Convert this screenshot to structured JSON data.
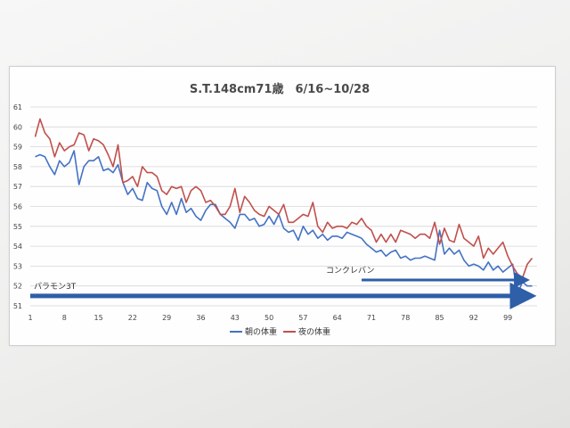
{
  "chart_data": {
    "type": "line",
    "title": "S.T.148cm71歳　6/16~10/28",
    "ylim": [
      51,
      61
    ],
    "yticks": [
      51,
      52,
      53,
      54,
      55,
      56,
      57,
      58,
      59,
      60,
      61
    ],
    "xlim": [
      1,
      105
    ],
    "xticks": [
      1,
      8,
      15,
      22,
      29,
      36,
      43,
      50,
      57,
      64,
      71,
      78,
      85,
      92,
      99
    ],
    "grid": true,
    "legend_position": "bottom",
    "series": [
      {
        "name": "朝の体重",
        "color": "#4472c4",
        "x": [
          2,
          3,
          4,
          5,
          6,
          7,
          8,
          9,
          10,
          11,
          12,
          13,
          14,
          15,
          16,
          17,
          18,
          19,
          20,
          21,
          22,
          23,
          24,
          25,
          26,
          27,
          28,
          29,
          30,
          31,
          32,
          33,
          34,
          35,
          36,
          37,
          38,
          39,
          40,
          41,
          42,
          43,
          44,
          45,
          46,
          47,
          48,
          49,
          50,
          51,
          52,
          53,
          54,
          55,
          56,
          57,
          58,
          59,
          60,
          61,
          62,
          63,
          64,
          65,
          66,
          67,
          68,
          69,
          70,
          71,
          72,
          73,
          74,
          75,
          76,
          77,
          78,
          79,
          80,
          81,
          82,
          83,
          84,
          85,
          86,
          87,
          88,
          89,
          90,
          91,
          92,
          93,
          94,
          95,
          96,
          97,
          98,
          99,
          100,
          101,
          102,
          103,
          104
        ],
        "values": [
          58.5,
          58.6,
          58.5,
          58.0,
          57.6,
          58.3,
          58.0,
          58.2,
          58.8,
          57.1,
          58.0,
          58.3,
          58.3,
          58.5,
          57.8,
          57.9,
          57.7,
          58.1,
          57.2,
          56.6,
          56.9,
          56.4,
          56.3,
          57.2,
          56.9,
          56.8,
          56.0,
          55.6,
          56.2,
          55.6,
          56.4,
          55.7,
          55.9,
          55.5,
          55.3,
          55.8,
          56.1,
          56.1,
          55.6,
          55.4,
          55.2,
          54.9,
          55.6,
          55.6,
          55.3,
          55.4,
          55.0,
          55.1,
          55.5,
          55.1,
          55.6,
          54.9,
          54.7,
          54.8,
          54.3,
          55.0,
          54.6,
          54.8,
          54.4,
          54.6,
          54.3,
          54.5,
          54.5,
          54.4,
          54.7,
          54.6,
          54.5,
          54.4,
          54.1,
          53.9,
          53.7,
          53.8,
          53.5,
          53.7,
          53.8,
          53.4,
          53.5,
          53.3,
          53.4,
          53.4,
          53.5,
          53.4,
          53.3,
          54.8,
          53.6,
          53.9,
          53.6,
          53.8,
          53.3,
          53.0,
          53.1,
          53.0,
          52.8,
          53.2,
          52.8,
          53.0,
          52.7,
          52.9,
          53.1,
          51.6,
          52.2,
          52.0,
          52.0
        ]
      },
      {
        "name": "夜の体重",
        "color": "#c0504d",
        "x": [
          2,
          3,
          4,
          5,
          6,
          7,
          8,
          9,
          10,
          11,
          12,
          13,
          14,
          15,
          16,
          17,
          18,
          19,
          20,
          21,
          22,
          23,
          24,
          25,
          26,
          27,
          28,
          29,
          30,
          31,
          32,
          33,
          34,
          35,
          36,
          37,
          38,
          39,
          40,
          41,
          42,
          43,
          44,
          45,
          46,
          47,
          48,
          49,
          50,
          51,
          52,
          53,
          54,
          55,
          56,
          57,
          58,
          59,
          60,
          61,
          62,
          63,
          64,
          65,
          66,
          67,
          68,
          69,
          70,
          71,
          72,
          73,
          74,
          75,
          76,
          77,
          78,
          79,
          80,
          81,
          82,
          83,
          84,
          85,
          86,
          87,
          88,
          89,
          90,
          91,
          92,
          93,
          94,
          95,
          96,
          97,
          98,
          99,
          100,
          101,
          102,
          103,
          104
        ],
        "values": [
          59.5,
          60.4,
          59.7,
          59.4,
          58.5,
          59.2,
          58.8,
          59.0,
          59.1,
          59.7,
          59.6,
          58.8,
          59.4,
          59.3,
          59.1,
          58.6,
          58.0,
          59.1,
          57.2,
          57.3,
          57.5,
          57.0,
          58.0,
          57.7,
          57.7,
          57.5,
          56.8,
          56.6,
          57.0,
          56.9,
          57.0,
          56.2,
          56.8,
          57.0,
          56.8,
          56.2,
          56.3,
          56.0,
          55.6,
          55.6,
          56.0,
          56.9,
          55.7,
          56.5,
          56.2,
          55.8,
          55.6,
          55.5,
          56.0,
          55.8,
          55.6,
          56.1,
          55.2,
          55.2,
          55.4,
          55.6,
          55.5,
          56.2,
          55.0,
          54.7,
          55.2,
          54.9,
          55.0,
          55.0,
          54.9,
          55.2,
          55.1,
          55.4,
          55.0,
          54.8,
          54.2,
          54.6,
          54.2,
          54.6,
          54.2,
          54.8,
          54.7,
          54.6,
          54.4,
          54.6,
          54.6,
          54.4,
          55.2,
          54.1,
          54.9,
          54.3,
          54.2,
          55.1,
          54.4,
          54.2,
          54.0,
          54.5,
          53.4,
          53.9,
          53.6,
          53.9,
          54.2,
          53.5,
          53.0,
          52.6,
          52.4,
          53.1,
          53.4
        ]
      }
    ],
    "annotations": [
      {
        "text": "パラモン3T",
        "x_start": 1,
        "x_end": 104,
        "y": 51.5
      },
      {
        "text": "コンクレバン",
        "x_start": 69,
        "x_end": 103,
        "y": 52.3
      }
    ],
    "arrow_color": "#2e5fa8"
  }
}
